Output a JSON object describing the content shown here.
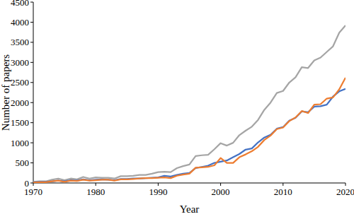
{
  "chart_data": {
    "type": "line",
    "x_label": "Year",
    "y_label": "Number of papers",
    "x": [
      1970,
      1971,
      1972,
      1973,
      1974,
      1975,
      1976,
      1977,
      1978,
      1979,
      1980,
      1981,
      1982,
      1983,
      1984,
      1985,
      1986,
      1987,
      1988,
      1989,
      1990,
      1991,
      1992,
      1993,
      1994,
      1995,
      1996,
      1997,
      1998,
      1999,
      2000,
      2001,
      2002,
      2003,
      2004,
      2005,
      2006,
      2007,
      2008,
      2009,
      2010,
      2011,
      2012,
      2013,
      2014,
      2015,
      2016,
      2017,
      2018,
      2019,
      2020
    ],
    "series": [
      {
        "color": "#a5a5a5",
        "values": [
          30,
          40,
          40,
          80,
          110,
          70,
          110,
          90,
          150,
          110,
          140,
          130,
          130,
          110,
          170,
          170,
          180,
          200,
          200,
          230,
          270,
          280,
          270,
          370,
          420,
          460,
          670,
          690,
          700,
          840,
          990,
          930,
          1000,
          1190,
          1300,
          1400,
          1570,
          1820,
          2000,
          2240,
          2290,
          2500,
          2630,
          2880,
          2860,
          3050,
          3120,
          3260,
          3400,
          3740,
          3920
        ]
      },
      {
        "color": "#4472c4",
        "values": [
          20,
          30,
          30,
          40,
          60,
          40,
          70,
          60,
          90,
          70,
          80,
          90,
          80,
          70,
          100,
          100,
          110,
          110,
          120,
          130,
          140,
          180,
          160,
          200,
          230,
          250,
          370,
          400,
          430,
          500,
          530,
          560,
          640,
          720,
          830,
          860,
          1010,
          1130,
          1200,
          1350,
          1390,
          1550,
          1620,
          1780,
          1760,
          1900,
          1910,
          1950,
          2150,
          2280,
          2340
        ]
      },
      {
        "color": "#ed7d31",
        "values": [
          10,
          20,
          20,
          40,
          60,
          30,
          60,
          50,
          80,
          60,
          70,
          80,
          80,
          60,
          90,
          90,
          100,
          110,
          120,
          120,
          130,
          140,
          120,
          180,
          210,
          230,
          380,
          390,
          400,
          440,
          620,
          500,
          500,
          640,
          710,
          790,
          900,
          1070,
          1180,
          1340,
          1380,
          1540,
          1630,
          1790,
          1740,
          1950,
          1960,
          2100,
          2130,
          2330,
          2620
        ]
      }
    ],
    "xlim": [
      1970,
      2020
    ],
    "xticks": [
      1970,
      1980,
      1990,
      2000,
      2010,
      2020
    ],
    "ylim": [
      0,
      4500
    ],
    "yticks": [
      0,
      500,
      1000,
      1500,
      2000,
      2500,
      3000,
      3500,
      4000,
      4500
    ],
    "grid": false
  }
}
